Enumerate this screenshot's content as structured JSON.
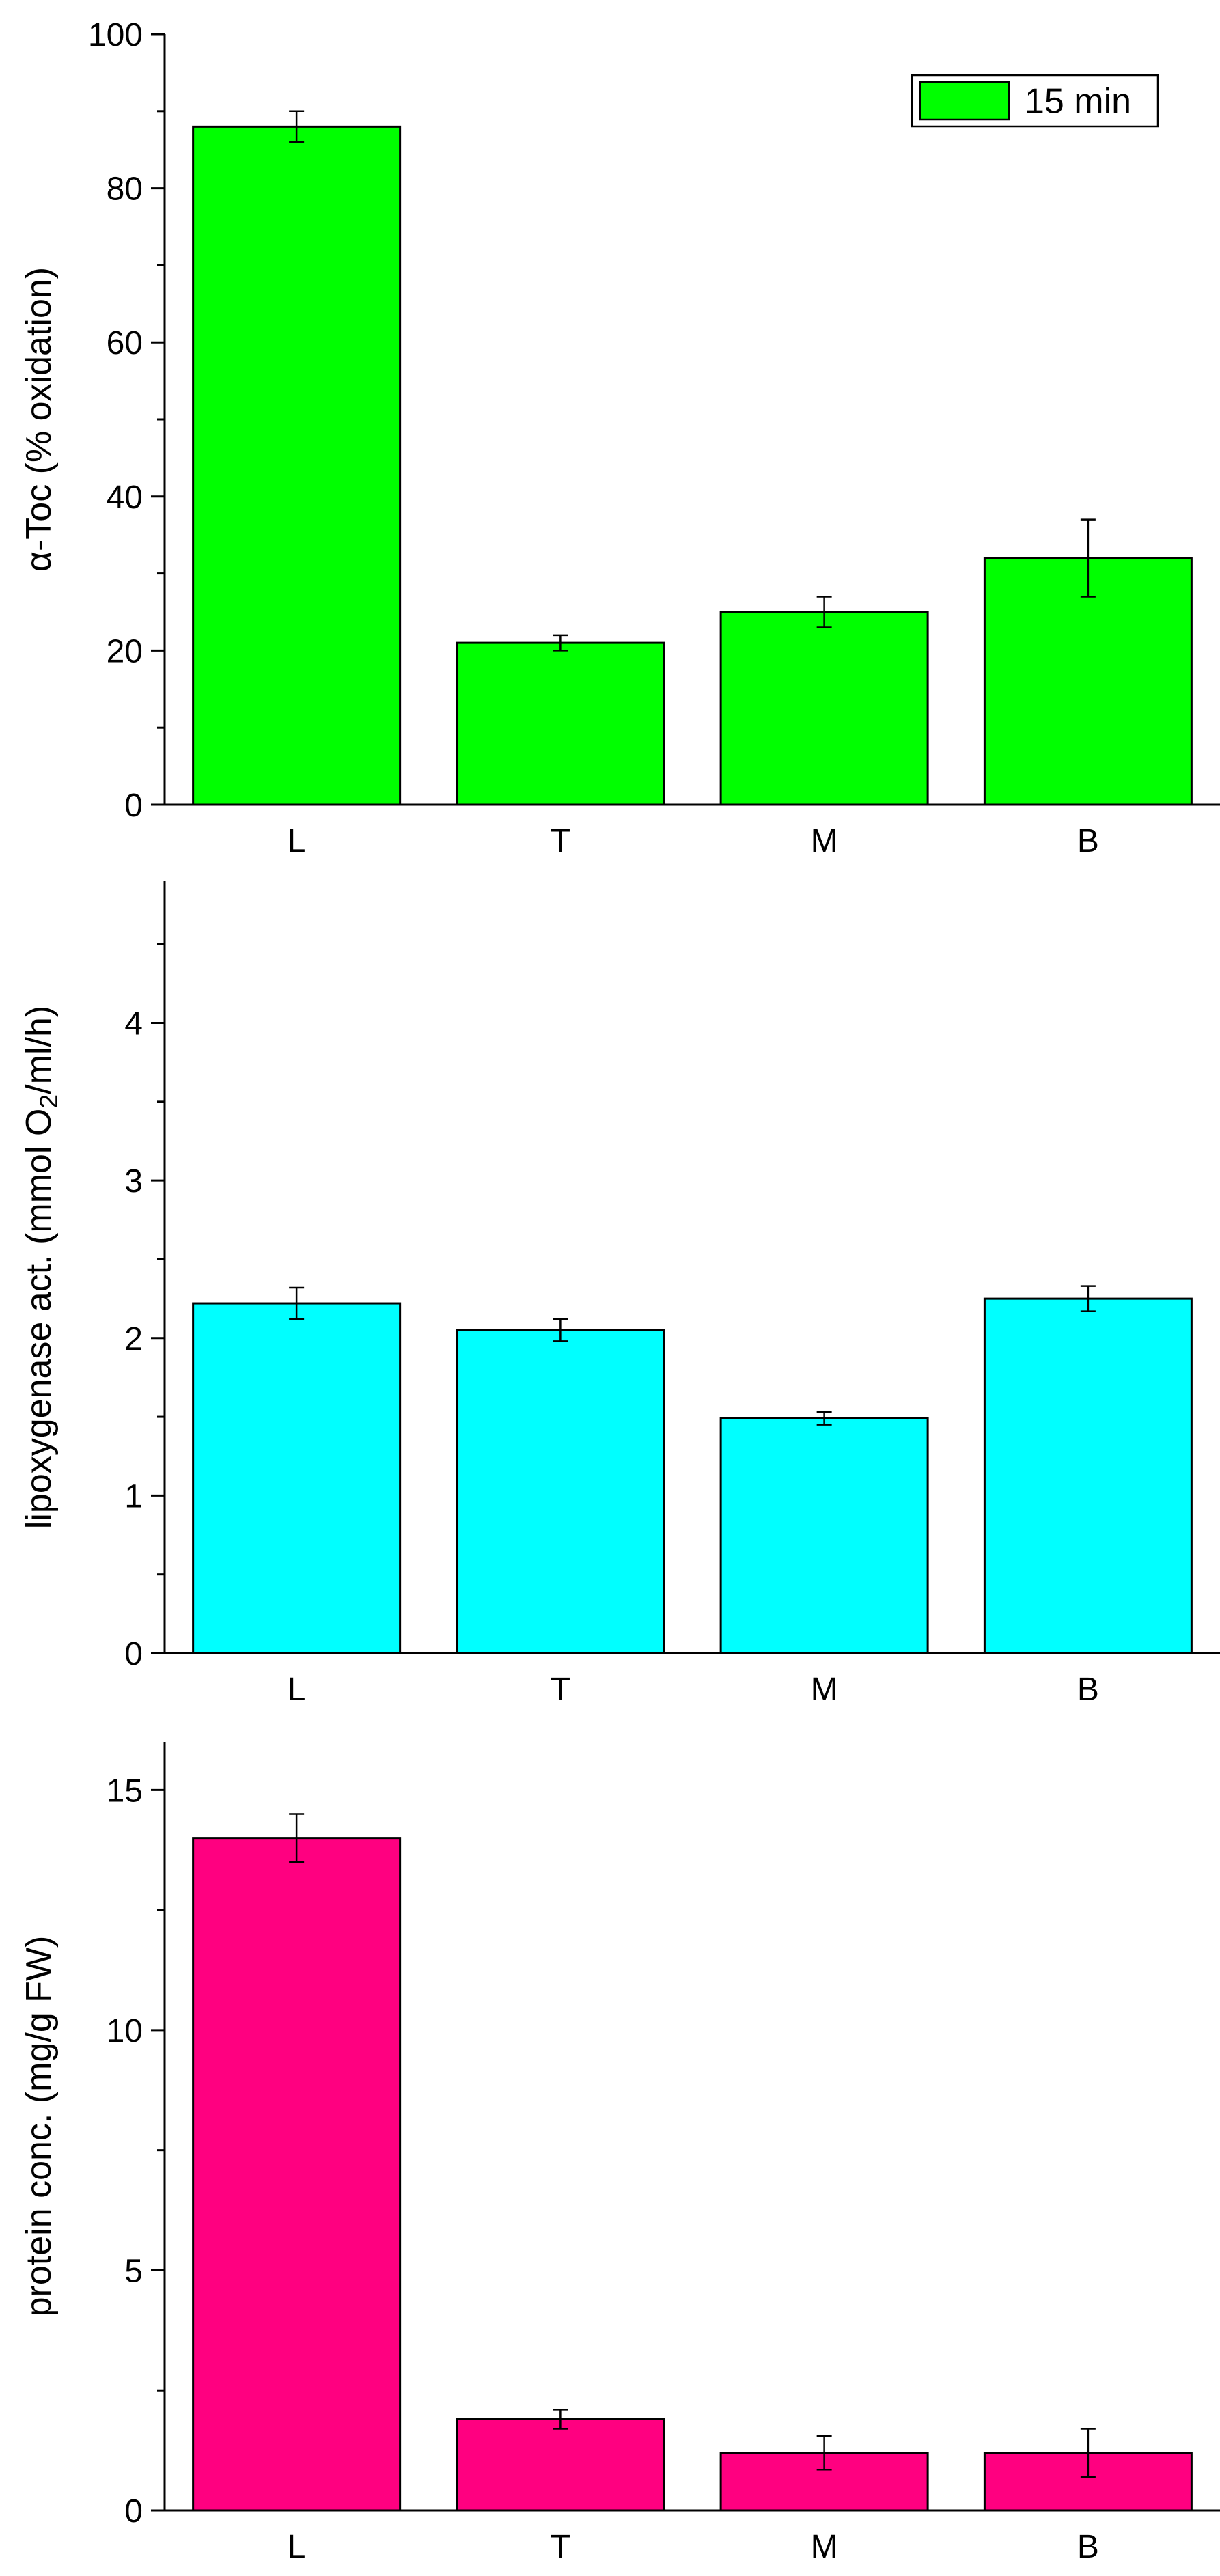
{
  "chart_data": [
    {
      "type": "bar",
      "title": "",
      "xlabel": "",
      "ylabel_parts": [
        [
          "α-Toc (% oxidation)",
          "base"
        ]
      ],
      "categories": [
        "L",
        "T",
        "M",
        "B"
      ],
      "values": [
        88,
        21,
        25,
        32
      ],
      "errors": [
        2,
        1,
        2,
        5
      ],
      "ylim": [
        0,
        100
      ],
      "major_ticks": [
        0,
        20,
        40,
        60,
        80,
        100
      ],
      "minor_ticks": [
        10,
        30,
        50,
        70,
        90
      ],
      "color": "#00ff00",
      "legend": {
        "position": "top-right",
        "label": "15 min",
        "color": "#00ff00"
      }
    },
    {
      "type": "bar",
      "title": "",
      "xlabel": "",
      "ylabel_parts": [
        [
          "lipoxygenase act. (mmol O",
          "base"
        ],
        [
          "2",
          "sub"
        ],
        [
          "/ml/h)",
          "base"
        ]
      ],
      "categories": [
        "L",
        "T",
        "M",
        "B"
      ],
      "values": [
        2.22,
        2.05,
        1.49,
        2.25
      ],
      "errors": [
        0.1,
        0.07,
        0.04,
        0.08
      ],
      "ylim": [
        0,
        4.9
      ],
      "major_ticks": [
        0,
        1,
        2,
        3,
        4
      ],
      "minor_ticks": [
        0.5,
        1.5,
        2.5,
        3.5,
        4.5
      ],
      "color": "#00ffff"
    },
    {
      "type": "bar",
      "title": "",
      "xlabel": "",
      "ylabel_parts": [
        [
          "protein conc. (mg/g FW)",
          "base"
        ]
      ],
      "categories": [
        "L",
        "T",
        "M",
        "B"
      ],
      "values": [
        14.0,
        1.9,
        1.2,
        1.2
      ],
      "errors": [
        0.5,
        0.2,
        0.35,
        0.5
      ],
      "ylim": [
        0,
        16
      ],
      "major_ticks": [
        0,
        5,
        10,
        15
      ],
      "minor_ticks": [
        2.5,
        7.5,
        12.5
      ],
      "color": "#ff0080"
    }
  ]
}
